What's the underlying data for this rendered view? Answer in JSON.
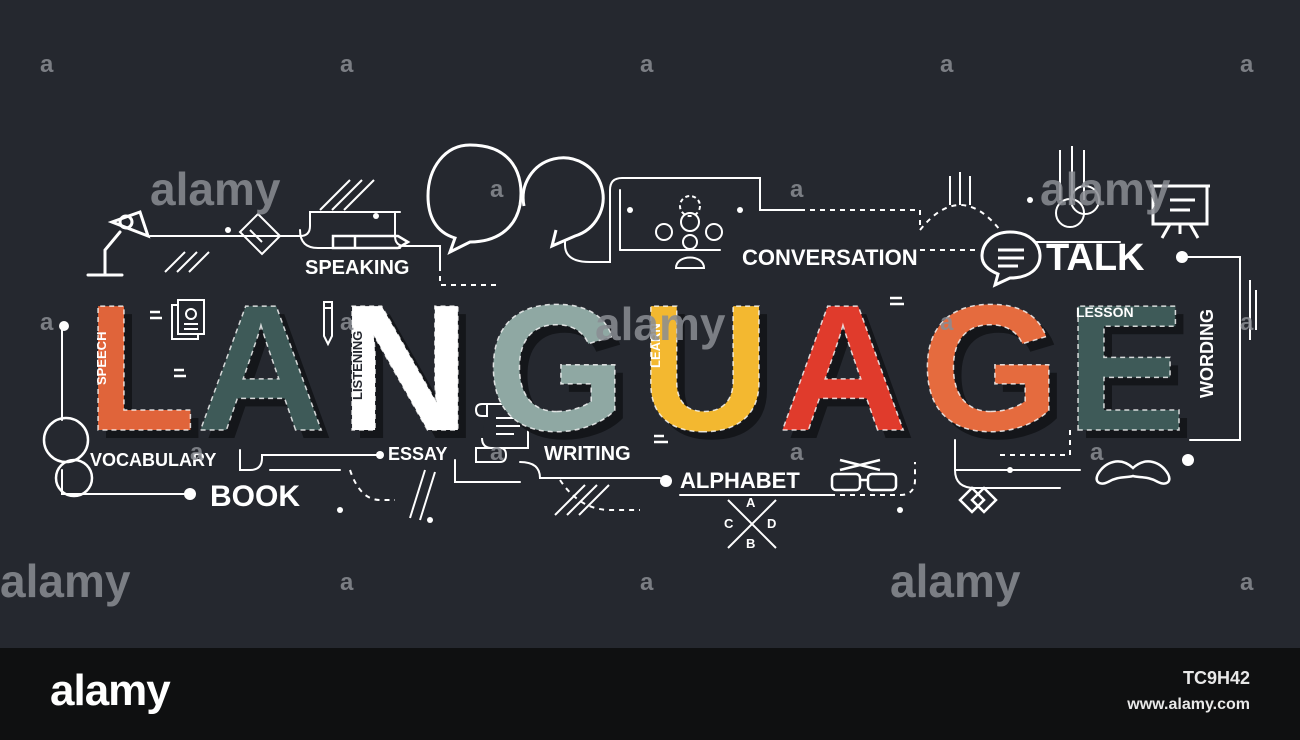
{
  "title_letters": [
    {
      "char": "L",
      "color": "#e0643a"
    },
    {
      "char": "A",
      "color": "#3e5a58"
    },
    {
      "char": "N",
      "color": "#ffffff"
    },
    {
      "char": "G",
      "color": "#8fa8a3"
    },
    {
      "char": "U",
      "color": "#f3b830"
    },
    {
      "char": "A",
      "color": "#e03b2c"
    },
    {
      "char": "G",
      "color": "#e56b3e"
    },
    {
      "char": "E",
      "color": "#3e5a58"
    }
  ],
  "letter_labels": {
    "speech": "SPEECH",
    "listening": "LISTENING",
    "learn": "LEARN",
    "lesson": "LESSON",
    "wording": "WORDING"
  },
  "keywords": {
    "speaking": "SPEAKING",
    "conversation": "CONVERSATION",
    "talk": "TALK",
    "vocabulary": "VOCABULARY",
    "book": "BOOK",
    "essay": "ESSAY",
    "writing": "WRITING",
    "alphabet": "ALPHABET"
  },
  "abcd": {
    "a": "A",
    "b": "B",
    "c": "C",
    "d": "D"
  },
  "watermark": "alamy",
  "footer": {
    "logo": "alamy",
    "image_id": "TC9H42",
    "url": "www.alamy.com"
  },
  "colors": {
    "background": "#25282f",
    "footer": "#0f1011",
    "line": "#ffffff"
  },
  "icons": [
    "desk-lamp-icon",
    "pen-icon",
    "speech-bubbles-icon",
    "people-icon",
    "presentation-board-icon",
    "chat-bubble-icon",
    "document-icon",
    "pencil-icon",
    "scroll-icon",
    "glasses-icon",
    "mustache-icon",
    "diamond-icon"
  ]
}
